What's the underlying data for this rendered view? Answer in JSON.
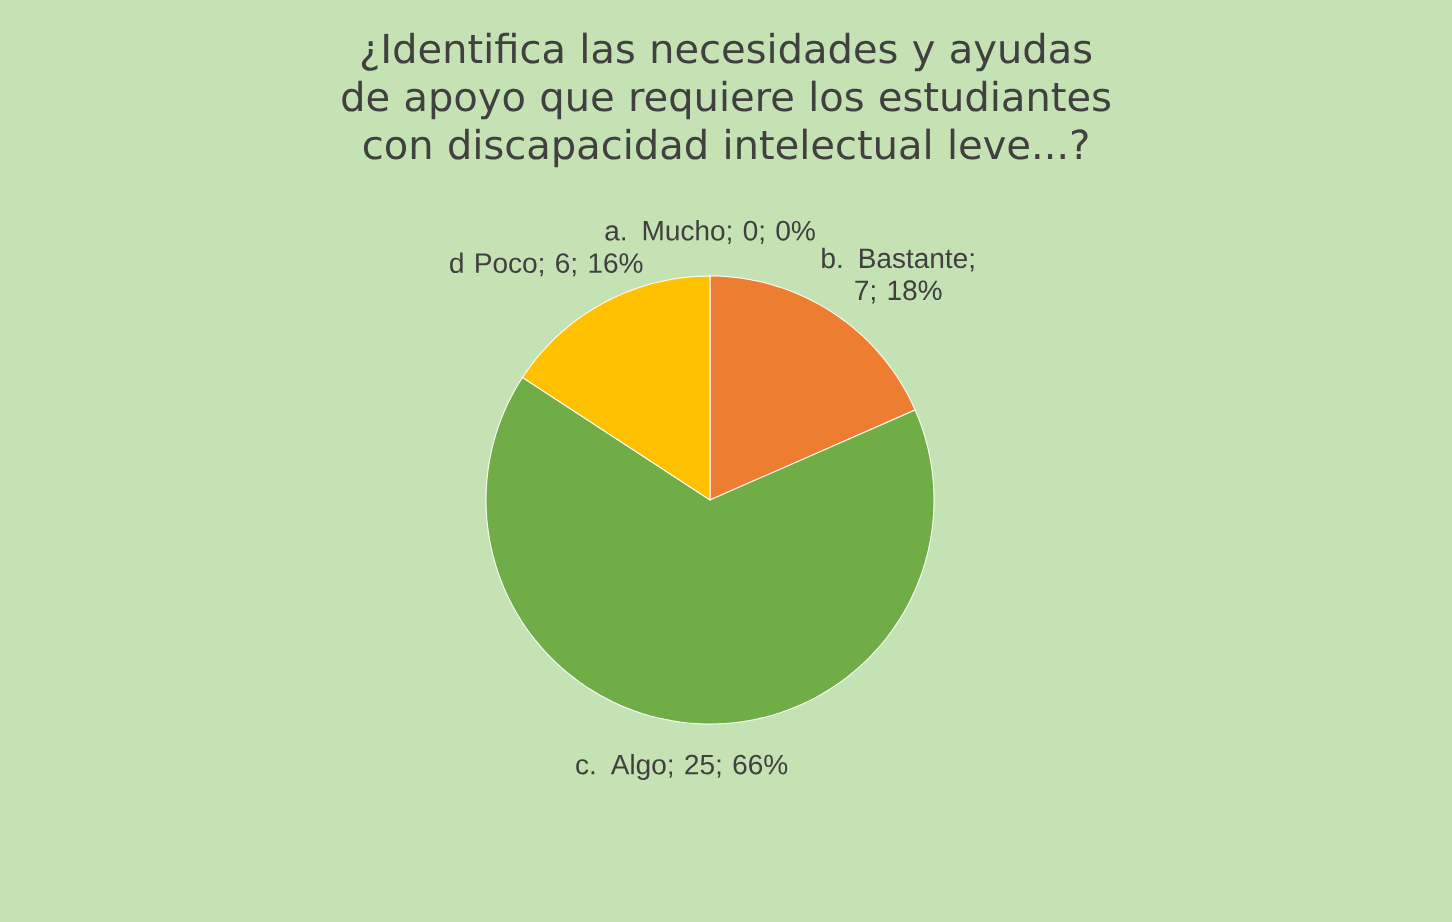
{
  "chart_data": {
    "type": "pie",
    "title": "¿Identifica las necesidades y ayudas de apoyo que requiere los estudiantes con discapacidad intelectual leve...?",
    "categories": [
      "a. Mucho; 0; 0%",
      "b.  Bastante; 7; 18%",
      "c.  Algo; 25; 66%",
      "d  Poco; 6; 16%"
    ],
    "values": [
      0,
      7,
      25,
      6
    ],
    "colors": [
      "#5b9bd5",
      "#ed7d31",
      "#70ad47",
      "#ffc000"
    ]
  }
}
